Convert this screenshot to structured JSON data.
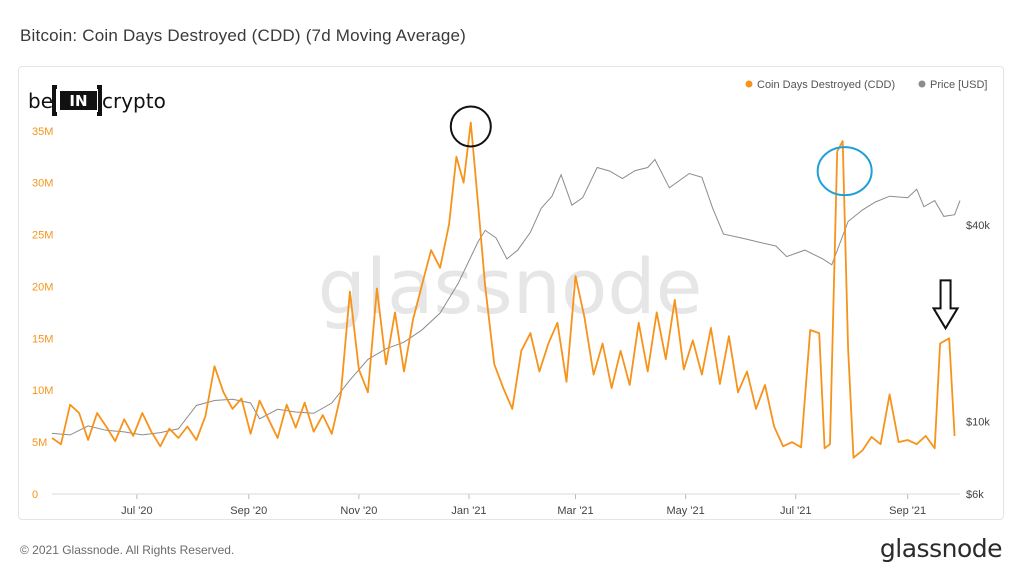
{
  "header": {
    "title": "Bitcoin: Coin Days Destroyed (CDD) (7d Moving Average)"
  },
  "footer": {
    "copyright": "© 2021 Glassnode. All Rights Reserved.",
    "logo_text": "glassnode"
  },
  "branding": {
    "logo_be": "be",
    "logo_in": "IN",
    "logo_crypto": "crypto",
    "watermark": "glassnode"
  },
  "colors": {
    "cdd": "#f7931a",
    "price": "#8c8c8c",
    "axis_text_left": "#f7931a",
    "axis_text_right": "#444444",
    "circle_black": "#111111",
    "circle_blue": "#1e9fd8"
  },
  "chart_data": {
    "type": "line",
    "title": "Bitcoin: Coin Days Destroyed (CDD) (7d Moving Average)",
    "x_ticks": [
      {
        "label": "Jul '20",
        "date": "2020-07-01"
      },
      {
        "label": "Sep '20",
        "date": "2020-09-01"
      },
      {
        "label": "Nov '20",
        "date": "2020-11-01"
      },
      {
        "label": "Jan '21",
        "date": "2021-01-01"
      },
      {
        "label": "Mar '21",
        "date": "2021-03-01"
      },
      {
        "label": "May '21",
        "date": "2021-05-01"
      },
      {
        "label": "Jul '21",
        "date": "2021-07-01"
      },
      {
        "label": "Sep '21",
        "date": "2021-09-01"
      }
    ],
    "x_range": [
      "2020-05-15",
      "2021-09-30"
    ],
    "y_left": {
      "ticks": [
        {
          "label": "0",
          "value": 0
        },
        {
          "label": "5M",
          "value": 5000000
        },
        {
          "label": "10M",
          "value": 10000000
        },
        {
          "label": "15M",
          "value": 15000000
        },
        {
          "label": "20M",
          "value": 20000000
        },
        {
          "label": "25M",
          "value": 25000000
        },
        {
          "label": "30M",
          "value": 30000000
        },
        {
          "label": "35M",
          "value": 35000000
        }
      ],
      "range": [
        0,
        37000000
      ]
    },
    "y_right": {
      "scale": "log",
      "ticks": [
        {
          "label": "$6k",
          "value": 6000
        },
        {
          "label": "$10k",
          "value": 10000
        },
        {
          "label": "$40k",
          "value": 40000
        }
      ],
      "range": [
        6000,
        90000
      ]
    },
    "series": [
      {
        "name": "Coin Days Destroyed (CDD)",
        "axis": "left",
        "points": [
          [
            "2020-05-15",
            5400000
          ],
          [
            "2020-05-20",
            4800000
          ],
          [
            "2020-05-25",
            8600000
          ],
          [
            "2020-05-30",
            7800000
          ],
          [
            "2020-06-04",
            5200000
          ],
          [
            "2020-06-09",
            7800000
          ],
          [
            "2020-06-14",
            6500000
          ],
          [
            "2020-06-19",
            5100000
          ],
          [
            "2020-06-24",
            7200000
          ],
          [
            "2020-06-29",
            5600000
          ],
          [
            "2020-07-04",
            7800000
          ],
          [
            "2020-07-09",
            6000000
          ],
          [
            "2020-07-14",
            4600000
          ],
          [
            "2020-07-19",
            6300000
          ],
          [
            "2020-07-24",
            5400000
          ],
          [
            "2020-07-29",
            6500000
          ],
          [
            "2020-08-03",
            5200000
          ],
          [
            "2020-08-08",
            7500000
          ],
          [
            "2020-08-13",
            12300000
          ],
          [
            "2020-08-18",
            9800000
          ],
          [
            "2020-08-23",
            8200000
          ],
          [
            "2020-08-28",
            9200000
          ],
          [
            "2020-09-02",
            5800000
          ],
          [
            "2020-09-07",
            9000000
          ],
          [
            "2020-09-12",
            7200000
          ],
          [
            "2020-09-17",
            5400000
          ],
          [
            "2020-09-22",
            8600000
          ],
          [
            "2020-09-27",
            6400000
          ],
          [
            "2020-10-02",
            8800000
          ],
          [
            "2020-10-07",
            6000000
          ],
          [
            "2020-10-12",
            7600000
          ],
          [
            "2020-10-17",
            5800000
          ],
          [
            "2020-10-22",
            9600000
          ],
          [
            "2020-10-27",
            19500000
          ],
          [
            "2020-11-01",
            12000000
          ],
          [
            "2020-11-06",
            9800000
          ],
          [
            "2020-11-11",
            19800000
          ],
          [
            "2020-11-16",
            12500000
          ],
          [
            "2020-11-21",
            17500000
          ],
          [
            "2020-11-26",
            11800000
          ],
          [
            "2020-12-01",
            16800000
          ],
          [
            "2020-12-06",
            20200000
          ],
          [
            "2020-12-11",
            23500000
          ],
          [
            "2020-12-16",
            21800000
          ],
          [
            "2020-12-21",
            26000000
          ],
          [
            "2020-12-25",
            32500000
          ],
          [
            "2020-12-29",
            30000000
          ],
          [
            "2021-01-02",
            35800000
          ],
          [
            "2021-01-06",
            28000000
          ],
          [
            "2021-01-10",
            20000000
          ],
          [
            "2021-01-15",
            12500000
          ],
          [
            "2021-01-20",
            10200000
          ],
          [
            "2021-01-25",
            8200000
          ],
          [
            "2021-01-30",
            13800000
          ],
          [
            "2021-02-04",
            15500000
          ],
          [
            "2021-02-09",
            11800000
          ],
          [
            "2021-02-14",
            14500000
          ],
          [
            "2021-02-19",
            16500000
          ],
          [
            "2021-02-24",
            10800000
          ],
          [
            "2021-03-01",
            21000000
          ],
          [
            "2021-03-06",
            17000000
          ],
          [
            "2021-03-11",
            11500000
          ],
          [
            "2021-03-16",
            14500000
          ],
          [
            "2021-03-21",
            10200000
          ],
          [
            "2021-03-26",
            13800000
          ],
          [
            "2021-03-31",
            10500000
          ],
          [
            "2021-04-05",
            16500000
          ],
          [
            "2021-04-10",
            11800000
          ],
          [
            "2021-04-15",
            17500000
          ],
          [
            "2021-04-20",
            13000000
          ],
          [
            "2021-04-25",
            18700000
          ],
          [
            "2021-04-30",
            12000000
          ],
          [
            "2021-05-05",
            14800000
          ],
          [
            "2021-05-10",
            11500000
          ],
          [
            "2021-05-15",
            16000000
          ],
          [
            "2021-05-20",
            10600000
          ],
          [
            "2021-05-25",
            15200000
          ],
          [
            "2021-05-30",
            9800000
          ],
          [
            "2021-06-04",
            11800000
          ],
          [
            "2021-06-09",
            8200000
          ],
          [
            "2021-06-14",
            10500000
          ],
          [
            "2021-06-19",
            6500000
          ],
          [
            "2021-06-24",
            4600000
          ],
          [
            "2021-06-29",
            5000000
          ],
          [
            "2021-07-04",
            4500000
          ],
          [
            "2021-07-09",
            15800000
          ],
          [
            "2021-07-14",
            15500000
          ],
          [
            "2021-07-17",
            4400000
          ],
          [
            "2021-07-20",
            4800000
          ],
          [
            "2021-07-24",
            33000000
          ],
          [
            "2021-07-27",
            34000000
          ],
          [
            "2021-07-30",
            14000000
          ],
          [
            "2021-08-02",
            3500000
          ],
          [
            "2021-08-07",
            4200000
          ],
          [
            "2021-08-12",
            5500000
          ],
          [
            "2021-08-17",
            4800000
          ],
          [
            "2021-08-22",
            9600000
          ],
          [
            "2021-08-27",
            5000000
          ],
          [
            "2021-09-01",
            5200000
          ],
          [
            "2021-09-06",
            4800000
          ],
          [
            "2021-09-11",
            5600000
          ],
          [
            "2021-09-16",
            4400000
          ],
          [
            "2021-09-19",
            14500000
          ],
          [
            "2021-09-24",
            15000000
          ],
          [
            "2021-09-27",
            5600000
          ]
        ]
      },
      {
        "name": "Price [USD]",
        "axis": "right",
        "points": [
          [
            "2020-05-15",
            9200
          ],
          [
            "2020-05-25",
            9100
          ],
          [
            "2020-06-04",
            9700
          ],
          [
            "2020-06-14",
            9400
          ],
          [
            "2020-06-24",
            9300
          ],
          [
            "2020-07-04",
            9100
          ],
          [
            "2020-07-14",
            9250
          ],
          [
            "2020-07-24",
            9500
          ],
          [
            "2020-08-03",
            11200
          ],
          [
            "2020-08-13",
            11600
          ],
          [
            "2020-08-23",
            11700
          ],
          [
            "2020-09-02",
            11400
          ],
          [
            "2020-09-07",
            10200
          ],
          [
            "2020-09-17",
            10900
          ],
          [
            "2020-09-27",
            10700
          ],
          [
            "2020-10-07",
            10600
          ],
          [
            "2020-10-17",
            11400
          ],
          [
            "2020-10-27",
            13400
          ],
          [
            "2020-11-06",
            15500
          ],
          [
            "2020-11-16",
            16700
          ],
          [
            "2020-11-26",
            17500
          ],
          [
            "2020-12-06",
            19100
          ],
          [
            "2020-12-16",
            21500
          ],
          [
            "2020-12-26",
            26500
          ],
          [
            "2021-01-06",
            35500
          ],
          [
            "2021-01-10",
            38500
          ],
          [
            "2021-01-16",
            36500
          ],
          [
            "2021-01-22",
            31500
          ],
          [
            "2021-01-28",
            33500
          ],
          [
            "2021-02-04",
            38000
          ],
          [
            "2021-02-10",
            45000
          ],
          [
            "2021-02-16",
            49000
          ],
          [
            "2021-02-21",
            57000
          ],
          [
            "2021-02-27",
            46000
          ],
          [
            "2021-03-05",
            48500
          ],
          [
            "2021-03-13",
            60000
          ],
          [
            "2021-03-20",
            58500
          ],
          [
            "2021-03-27",
            55500
          ],
          [
            "2021-04-03",
            58700
          ],
          [
            "2021-04-10",
            60000
          ],
          [
            "2021-04-14",
            63500
          ],
          [
            "2021-04-22",
            52000
          ],
          [
            "2021-05-03",
            57500
          ],
          [
            "2021-05-10",
            56000
          ],
          [
            "2021-05-16",
            45000
          ],
          [
            "2021-05-22",
            37500
          ],
          [
            "2021-06-01",
            36500
          ],
          [
            "2021-06-10",
            35500
          ],
          [
            "2021-06-20",
            34500
          ],
          [
            "2021-06-26",
            32000
          ],
          [
            "2021-07-06",
            33500
          ],
          [
            "2021-07-16",
            31500
          ],
          [
            "2021-07-21",
            30200
          ],
          [
            "2021-07-30",
            41000
          ],
          [
            "2021-08-07",
            44500
          ],
          [
            "2021-08-14",
            47000
          ],
          [
            "2021-08-22",
            49000
          ],
          [
            "2021-09-01",
            48500
          ],
          [
            "2021-09-06",
            51500
          ],
          [
            "2021-09-10",
            45500
          ],
          [
            "2021-09-16",
            47500
          ],
          [
            "2021-09-21",
            42500
          ],
          [
            "2021-09-27",
            43000
          ],
          [
            "2021-09-30",
            47500
          ]
        ]
      }
    ],
    "legend": {
      "placement": "top-right"
    },
    "annotations": [
      {
        "kind": "circle",
        "color": "black",
        "at": [
          "2021-01-02",
          35800000
        ]
      },
      {
        "kind": "circle",
        "color": "blue",
        "at": [
          "2021-07-27",
          34000000
        ]
      },
      {
        "kind": "down-arrow",
        "at": [
          "2021-09-22",
          15000000
        ]
      }
    ],
    "grid": false
  }
}
